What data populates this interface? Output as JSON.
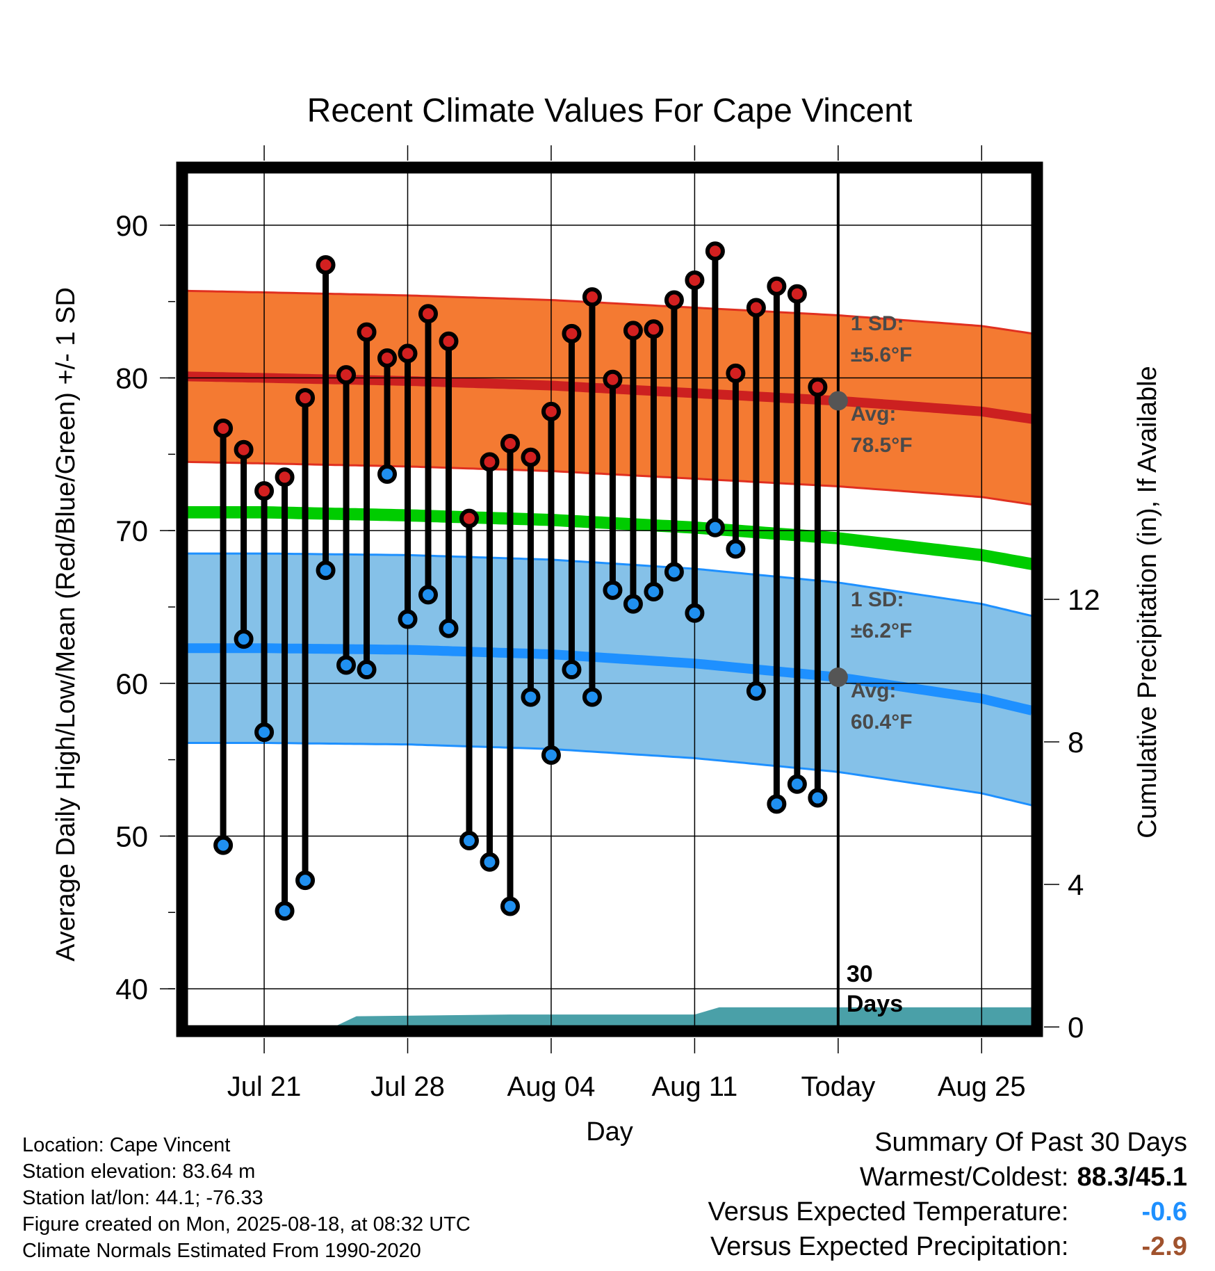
{
  "chart_data": {
    "type": "line",
    "title": "Recent Climate Values For Cape Vincent",
    "xlabel": "Day",
    "ylabel": "Average Daily High/Low/Mean (Red/Blue/Green) +/- 1 SD",
    "y2label": "Cumulative Precipitation (in), If Available",
    "ylim": [
      37.5,
      93.5
    ],
    "y2lim": [
      0,
      24
    ],
    "yticks": [
      40,
      50,
      60,
      70,
      80,
      90
    ],
    "y2ticks": [
      0,
      4,
      8,
      12
    ],
    "x_ticks": [
      {
        "day": 21,
        "label": "Jul 21"
      },
      {
        "day": 28,
        "label": "Jul 28"
      },
      {
        "day": 35,
        "label": "Aug 04"
      },
      {
        "day": 42,
        "label": "Aug 11"
      },
      {
        "day": 49,
        "label": "Today"
      },
      {
        "day": 56,
        "label": "Aug 25"
      }
    ],
    "today_label": "30\nDays",
    "daily": {
      "days": [
        19,
        20,
        21,
        22,
        23,
        24,
        25,
        26,
        27,
        28,
        29,
        30,
        31,
        32,
        33,
        34,
        35,
        36,
        37,
        38,
        39,
        40,
        41,
        42,
        43,
        44,
        45,
        46,
        47,
        48
      ],
      "highs": [
        76.7,
        75.3,
        72.6,
        73.5,
        78.7,
        87.4,
        80.2,
        83.0,
        81.3,
        81.6,
        84.2,
        82.4,
        70.8,
        74.5,
        75.7,
        74.8,
        77.8,
        82.9,
        85.3,
        79.9,
        83.1,
        83.2,
        85.1,
        86.4,
        88.3,
        80.3,
        84.6,
        86.0,
        85.5,
        79.4
      ],
      "lows": [
        49.4,
        62.9,
        56.8,
        45.1,
        47.1,
        67.4,
        61.2,
        60.9,
        73.7,
        64.2,
        65.8,
        63.6,
        49.7,
        48.3,
        45.4,
        59.1,
        55.3,
        60.9,
        59.1,
        66.1,
        65.2,
        66.0,
        67.3,
        64.6,
        70.2,
        68.8,
        59.5,
        52.1,
        53.4,
        52.5
      ]
    },
    "normals": {
      "days": [
        17.2,
        21,
        28,
        35,
        42,
        49,
        56,
        58.5
      ],
      "high_avg": [
        80.1,
        80.0,
        79.8,
        79.5,
        79.0,
        78.5,
        77.8,
        77.3
      ],
      "low_avg": [
        62.3,
        62.3,
        62.2,
        61.9,
        61.3,
        60.4,
        59.0,
        58.2
      ],
      "mean_avg": [
        71.2,
        71.2,
        71.0,
        70.7,
        70.2,
        69.5,
        68.4,
        67.8
      ],
      "high_sd": 5.6,
      "low_sd": 6.2,
      "mean_band_width": 0.8
    },
    "precipitation": {
      "days": [
        17.2,
        24.4,
        25.5,
        33,
        42,
        43.2,
        58.5
      ],
      "values": [
        0,
        0,
        0.3,
        0.35,
        0.35,
        0.55,
        0.55
      ]
    },
    "annotations": {
      "high_sd_line1": "1 SD:",
      "high_sd_line2": "±5.6°F",
      "high_avg_line1": "Avg:",
      "high_avg_line2": "78.5°F",
      "low_sd_line1": "1 SD:",
      "low_sd_line2": "±6.2°F",
      "low_avg_line1": "Avg:",
      "low_avg_line2": "60.4°F",
      "days_line1": "30",
      "days_line2": "Days"
    },
    "colors": {
      "high_band": "#f47a32",
      "high_edge": "#e03020",
      "high_avg": "#cc2020",
      "low_band": "#85c1e8",
      "low_edge": "#1e90ff",
      "low_avg": "#1e90ff",
      "mean": "#00cc00",
      "precip": "#4aa0a8",
      "high_dot": "#d32020",
      "low_dot": "#2090f0",
      "today_dot": "#555555"
    },
    "grid": true
  },
  "info": {
    "location": "Location: Cape Vincent",
    "elevation": "Station elevation: 83.64 m",
    "latlon": "Station lat/lon: 44.1; -76.33",
    "created": "Figure created on Mon, 2025-08-18, at 08:32 UTC",
    "normals": "Climate Normals Estimated From 1990-2020"
  },
  "summary": {
    "title": "Summary Of Past 30 Days",
    "warmest_label": "Warmest/Coldest:",
    "warmest_value": "88.3/45.1",
    "temp_label": "Versus Expected Temperature:",
    "temp_value": "-0.6",
    "temp_color": "#1e90ff",
    "precip_label": "Versus Expected Precipitation:",
    "precip_value": "-2.9",
    "precip_color": "#a0522d"
  }
}
